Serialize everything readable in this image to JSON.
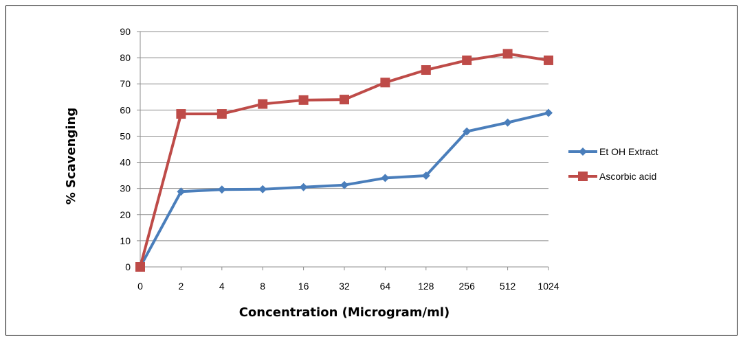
{
  "chart_data": {
    "type": "line",
    "title": "",
    "xlabel": "Concentration (Microgram/ml)",
    "ylabel": "% Scavenging",
    "categories": [
      "0",
      "2",
      "4",
      "8",
      "16",
      "32",
      "64",
      "128",
      "256",
      "512",
      "1024"
    ],
    "ylim": [
      0,
      90
    ],
    "yticks": [
      0,
      10,
      20,
      30,
      40,
      50,
      60,
      70,
      80,
      90
    ],
    "grid": "horizontal",
    "legend_position": "right",
    "series": [
      {
        "name": "Et OH Extract",
        "color": "#4a7ebb",
        "marker": "diamond",
        "values": [
          0,
          28.8,
          29.6,
          29.7,
          30.5,
          31.3,
          34.0,
          34.9,
          51.8,
          55.2,
          58.9
        ]
      },
      {
        "name": "Ascorbic acid",
        "color": "#be4b48",
        "marker": "square",
        "values": [
          0,
          58.5,
          58.5,
          62.3,
          63.8,
          64.0,
          70.5,
          75.3,
          79.0,
          81.5,
          79.0
        ]
      }
    ]
  }
}
